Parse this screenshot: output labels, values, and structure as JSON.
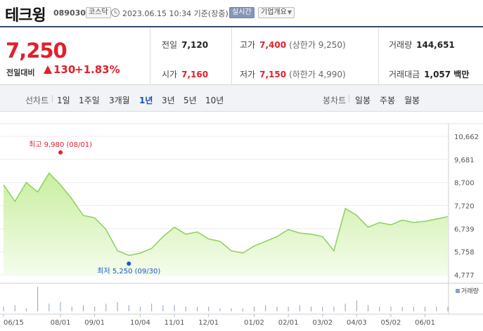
{
  "header": {
    "stock_name": "테크윙",
    "stock_code": "089030",
    "market_badge": "코스닥",
    "datetime": "2023.06.15 10:34 기준(장중)",
    "realtime_badge": "실시간",
    "company_info_button": "기업개요"
  },
  "summary": {
    "price": "7,250",
    "change_label": "전일대비",
    "change_value": "130",
    "change_percent": "+1.83%",
    "prev_close_label": "전일",
    "prev_close": "7,120",
    "high_label": "고가",
    "high": "7,400",
    "upper_limit_label": "(상한가",
    "upper_limit": "9,250)",
    "volume_label": "거래량",
    "volume": "144,651",
    "open_label": "시가",
    "open": "7,160",
    "low_label": "저가",
    "low": "7,150",
    "lower_limit_label": "(하한가",
    "lower_limit": "4,990)",
    "amount_label": "거래대금",
    "amount": "1,057 백만"
  },
  "periods": {
    "line_chart_label": "선차트",
    "options": [
      "1일",
      "1주일",
      "3개월",
      "1년",
      "3년",
      "5년",
      "10년"
    ],
    "selected": "1년",
    "candle_label": "봉차트",
    "candle_options": [
      "일봉",
      "주봉",
      "월봉"
    ]
  },
  "colors": {
    "price_up": "#e0202b",
    "line": "#8ccf5c",
    "fill_top": "#c9ee9f",
    "fill_bottom": "#f4fcec",
    "volume": "#8da0c0",
    "low_marker": "#1a56c8",
    "selected_tab": "#1a4fb0"
  },
  "chart_data": {
    "type": "area",
    "yticks": [
      "10,662",
      "9,681",
      "8,700",
      "7,720",
      "6,739",
      "5,758",
      "4,777"
    ],
    "ylim": [
      4777,
      10662
    ],
    "xticks": [
      "06/15",
      "08/01",
      "09/01",
      "10/04",
      "11/01",
      "12/01",
      "01/02",
      "02/01",
      "03/02",
      "04/03",
      "05/02",
      "06/01"
    ],
    "x": [
      "06/15",
      "06/25",
      "07/05",
      "07/15",
      "07/25",
      "08/01",
      "08/10",
      "08/20",
      "09/01",
      "09/10",
      "09/20",
      "09/30",
      "10/04",
      "10/15",
      "10/25",
      "11/01",
      "11/10",
      "11/20",
      "12/01",
      "12/10",
      "12/20",
      "12/28",
      "01/02",
      "01/10",
      "01/20",
      "02/01",
      "02/10",
      "02/20",
      "03/02",
      "03/10",
      "03/20",
      "04/03",
      "04/10",
      "04/20",
      "05/02",
      "05/10",
      "05/20",
      "06/01",
      "06/10",
      "06/15"
    ],
    "values": [
      8600,
      7900,
      8700,
      8300,
      9100,
      8600,
      8000,
      7300,
      7200,
      6700,
      5800,
      5600,
      5700,
      5900,
      6400,
      6800,
      6500,
      6600,
      6300,
      6200,
      5800,
      5700,
      6000,
      6200,
      6400,
      6700,
      6550,
      6500,
      6400,
      5800,
      7600,
      7300,
      6800,
      7000,
      6900,
      7100,
      7000,
      7050,
      7150,
      7250
    ],
    "volume": [
      3,
      4,
      2,
      16,
      5,
      6,
      3,
      4,
      3,
      5,
      6,
      4,
      3,
      5,
      4,
      4,
      3,
      3,
      3,
      2,
      2,
      2,
      3,
      4,
      3,
      3,
      4,
      3,
      3,
      3,
      5,
      7,
      4,
      3,
      3,
      3,
      3,
      3,
      3,
      3
    ],
    "high_label": "최고",
    "high_value": "9,980",
    "high_date": "(08/01)",
    "high_index": 5,
    "high_y": 9980,
    "low_label": "최저",
    "low_value": "5,250",
    "low_date": "(09/30)",
    "low_index": 11,
    "low_y": 5250,
    "volume_legend": "거래량",
    "grid": true
  }
}
